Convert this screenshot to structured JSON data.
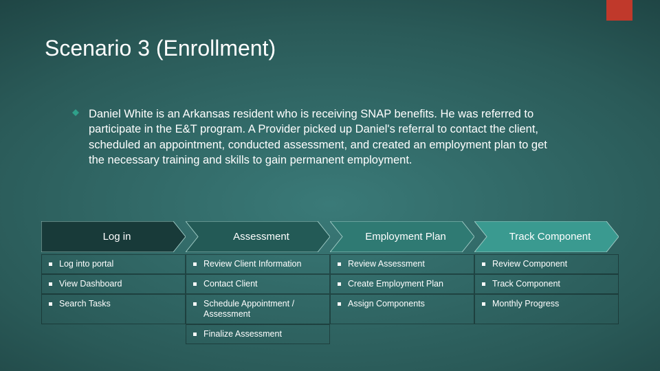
{
  "accent_color": "#c0392b",
  "title": "Scenario 3 (Enrollment)",
  "diamond_color": "#2fa08a",
  "description": "Daniel White is an Arkansas resident who is receiving SNAP benefits. He was referred to participate in the E&T program. A Provider picked up Daniel's referral to contact the client, scheduled an appointment, conducted assessment, and created an employment plan to get the necessary training and skills to gain permanent employment.",
  "chevrons": {
    "fills": [
      "#183a39",
      "#235a56",
      "#2f7a73",
      "#3a9a90"
    ],
    "stroke": "#9fcac4",
    "labels": [
      "Log in",
      "Assessment",
      "Employment Plan",
      "Track Component"
    ]
  },
  "grid": {
    "cols": 4,
    "rows": 4,
    "items": [
      [
        "Log into portal",
        "Review Client Information",
        "Review Assessment",
        "Review Component"
      ],
      [
        "View Dashboard",
        "Contact Client",
        "Create Employment Plan",
        "Track Component"
      ],
      [
        "Search Tasks",
        "Schedule Appointment / Assessment",
        "Assign Components",
        "Monthly Progress"
      ],
      [
        "",
        "Finalize Assessment",
        "",
        ""
      ]
    ]
  }
}
